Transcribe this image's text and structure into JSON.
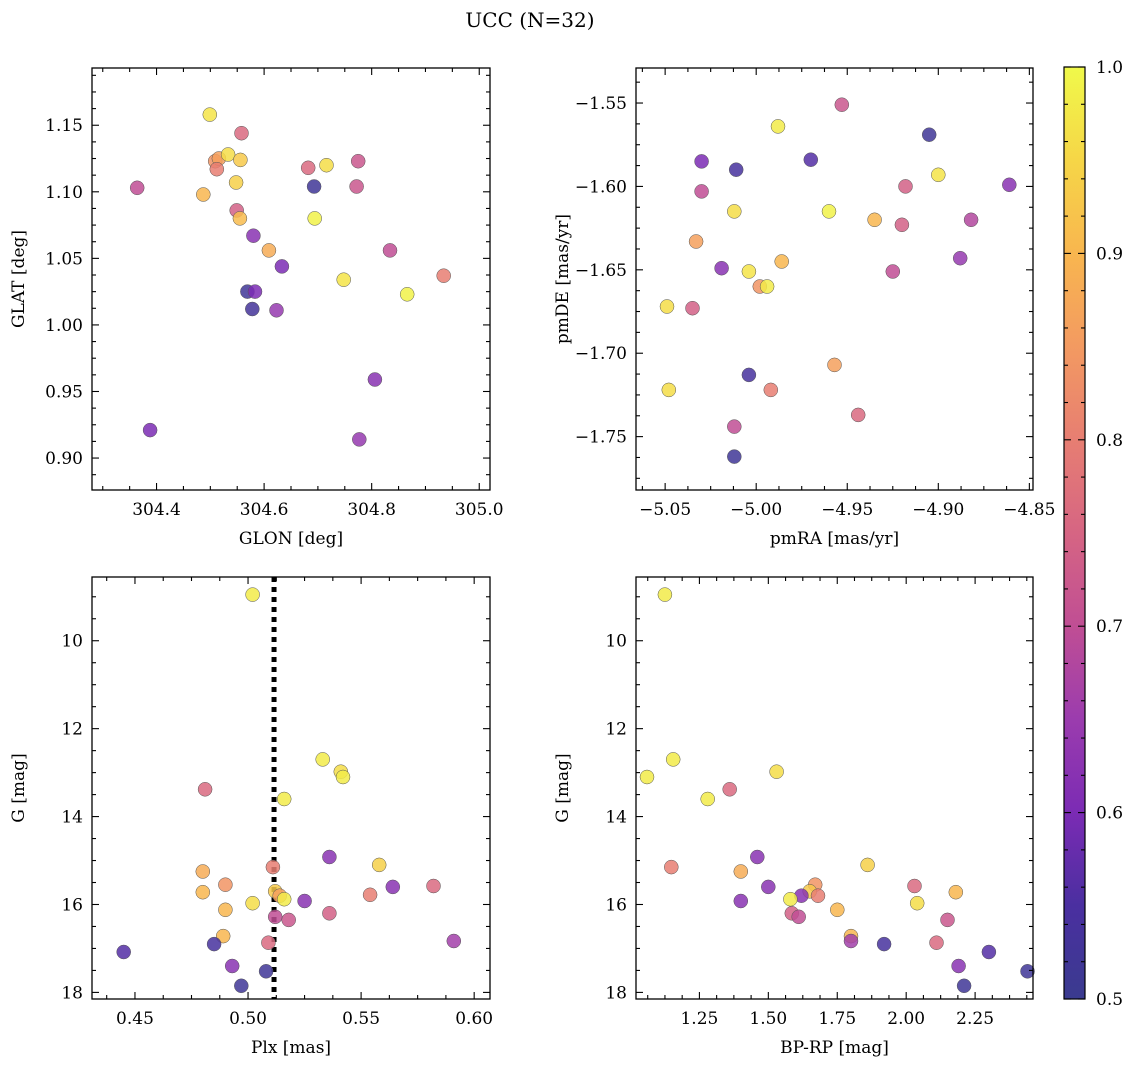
{
  "figure": {
    "title": "UCC (N=32)"
  },
  "chart_data": [
    {
      "type": "scatter",
      "xlabel": "GLON [deg]",
      "ylabel": "GLAT [deg]",
      "xlim": [
        304.28,
        305.02
      ],
      "ylim": [
        0.876,
        1.193
      ],
      "y_inverted": false,
      "xticks": [
        304.4,
        304.6,
        304.8,
        305.0
      ],
      "xtick_labels": [
        "304.4",
        "304.6",
        "304.8",
        "305.0"
      ],
      "yticks": [
        0.9,
        0.95,
        1.0,
        1.05,
        1.1,
        1.15
      ],
      "ytick_labels": [
        "0.90",
        "0.95",
        "1.00",
        "1.05",
        "1.10",
        "1.15"
      ],
      "grid": false,
      "points": [
        {
          "x": 304.499,
          "y": 1.158,
          "c": 0.97
        },
        {
          "x": 304.558,
          "y": 1.144,
          "c": 0.76
        },
        {
          "x": 304.364,
          "y": 1.103,
          "c": 0.7
        },
        {
          "x": 304.388,
          "y": 0.921,
          "c": 0.6
        },
        {
          "x": 304.487,
          "y": 1.098,
          "c": 0.9
        },
        {
          "x": 304.509,
          "y": 1.123,
          "c": 0.84
        },
        {
          "x": 304.516,
          "y": 1.125,
          "c": 0.86
        },
        {
          "x": 304.512,
          "y": 1.117,
          "c": 0.8
        },
        {
          "x": 304.533,
          "y": 1.128,
          "c": 0.96
        },
        {
          "x": 304.556,
          "y": 1.124,
          "c": 0.93
        },
        {
          "x": 304.548,
          "y": 1.107,
          "c": 0.94
        },
        {
          "x": 304.549,
          "y": 1.086,
          "c": 0.74
        },
        {
          "x": 304.555,
          "y": 1.08,
          "c": 0.91
        },
        {
          "x": 304.58,
          "y": 1.067,
          "c": 0.62
        },
        {
          "x": 304.609,
          "y": 1.056,
          "c": 0.88
        },
        {
          "x": 304.633,
          "y": 1.044,
          "c": 0.6
        },
        {
          "x": 304.569,
          "y": 1.025,
          "c": 0.52
        },
        {
          "x": 304.583,
          "y": 1.025,
          "c": 0.6
        },
        {
          "x": 304.578,
          "y": 1.012,
          "c": 0.53
        },
        {
          "x": 304.623,
          "y": 1.011,
          "c": 0.64
        },
        {
          "x": 304.682,
          "y": 1.118,
          "c": 0.76
        },
        {
          "x": 304.693,
          "y": 1.104,
          "c": 0.52
        },
        {
          "x": 304.716,
          "y": 1.12,
          "c": 0.96
        },
        {
          "x": 304.694,
          "y": 1.08,
          "c": 0.99
        },
        {
          "x": 304.775,
          "y": 1.123,
          "c": 0.72
        },
        {
          "x": 304.772,
          "y": 1.104,
          "c": 0.72
        },
        {
          "x": 304.748,
          "y": 1.034,
          "c": 0.97
        },
        {
          "x": 304.834,
          "y": 1.056,
          "c": 0.7
        },
        {
          "x": 304.866,
          "y": 1.023,
          "c": 0.99
        },
        {
          "x": 304.934,
          "y": 1.037,
          "c": 0.8
        },
        {
          "x": 304.806,
          "y": 0.959,
          "c": 0.62
        },
        {
          "x": 304.777,
          "y": 0.914,
          "c": 0.64
        }
      ]
    },
    {
      "type": "scatter",
      "xlabel": "pmRA [mas/yr]",
      "ylabel": "pmDE [mas/yr]",
      "xlim": [
        -5.066,
        -4.848
      ],
      "ylim": [
        -1.782,
        -1.529
      ],
      "y_inverted": false,
      "xticks": [
        -5.05,
        -5.0,
        -4.95,
        -4.9,
        -4.85
      ],
      "xtick_labels": [
        "−5.05",
        "−5.00",
        "−4.95",
        "−4.90",
        "−4.85"
      ],
      "yticks": [
        -1.75,
        -1.7,
        -1.65,
        -1.6,
        -1.55
      ],
      "ytick_labels": [
        "−1.75",
        "−1.70",
        "−1.65",
        "−1.60",
        "−1.55"
      ],
      "grid": false,
      "points": [
        {
          "x": -4.953,
          "y": -1.551,
          "c": 0.72
        },
        {
          "x": -4.988,
          "y": -1.564,
          "c": 0.98
        },
        {
          "x": -4.905,
          "y": -1.569,
          "c": 0.52
        },
        {
          "x": -5.03,
          "y": -1.585,
          "c": 0.6
        },
        {
          "x": -5.011,
          "y": -1.59,
          "c": 0.54
        },
        {
          "x": -4.97,
          "y": -1.584,
          "c": 0.56
        },
        {
          "x": -4.9,
          "y": -1.593,
          "c": 0.97
        },
        {
          "x": -5.03,
          "y": -1.603,
          "c": 0.7
        },
        {
          "x": -4.918,
          "y": -1.6,
          "c": 0.74
        },
        {
          "x": -4.861,
          "y": -1.599,
          "c": 0.62
        },
        {
          "x": -5.012,
          "y": -1.615,
          "c": 0.96
        },
        {
          "x": -4.96,
          "y": -1.615,
          "c": 0.99
        },
        {
          "x": -4.935,
          "y": -1.62,
          "c": 0.9
        },
        {
          "x": -4.92,
          "y": -1.623,
          "c": 0.74
        },
        {
          "x": -4.882,
          "y": -1.62,
          "c": 0.68
        },
        {
          "x": -5.033,
          "y": -1.633,
          "c": 0.86
        },
        {
          "x": -5.019,
          "y": -1.649,
          "c": 0.62
        },
        {
          "x": -5.004,
          "y": -1.651,
          "c": 0.97
        },
        {
          "x": -4.986,
          "y": -1.645,
          "c": 0.9
        },
        {
          "x": -4.925,
          "y": -1.651,
          "c": 0.7
        },
        {
          "x": -4.888,
          "y": -1.643,
          "c": 0.64
        },
        {
          "x": -4.998,
          "y": -1.66,
          "c": 0.84
        },
        {
          "x": -4.994,
          "y": -1.66,
          "c": 0.98
        },
        {
          "x": -5.049,
          "y": -1.672,
          "c": 0.96
        },
        {
          "x": -5.035,
          "y": -1.673,
          "c": 0.74
        },
        {
          "x": -5.048,
          "y": -1.722,
          "c": 0.96
        },
        {
          "x": -5.004,
          "y": -1.713,
          "c": 0.54
        },
        {
          "x": -4.992,
          "y": -1.722,
          "c": 0.8
        },
        {
          "x": -4.957,
          "y": -1.707,
          "c": 0.86
        },
        {
          "x": -4.944,
          "y": -1.737,
          "c": 0.76
        },
        {
          "x": -5.012,
          "y": -1.744,
          "c": 0.7
        },
        {
          "x": -5.012,
          "y": -1.762,
          "c": 0.52
        }
      ]
    },
    {
      "type": "scatter",
      "xlabel": "Plx [mas]",
      "ylabel": "G [mag]",
      "xlim": [
        0.431,
        0.607
      ],
      "ylim": [
        8.55,
        18.15
      ],
      "y_inverted": true,
      "xticks": [
        0.45,
        0.5,
        0.55,
        0.6
      ],
      "xtick_labels": [
        "0.45",
        "0.50",
        "0.55",
        "0.60"
      ],
      "yticks": [
        10,
        12,
        14,
        16,
        18
      ],
      "ytick_labels": [
        "10",
        "12",
        "14",
        "16",
        "18"
      ],
      "grid": false,
      "reference_line": {
        "orientation": "vertical",
        "x": 0.5115,
        "style": "dotted",
        "color": "#000000"
      },
      "points": [
        {
          "x": 0.502,
          "y": 8.95,
          "c": 0.98
        },
        {
          "x": 0.533,
          "y": 12.7,
          "c": 0.98
        },
        {
          "x": 0.541,
          "y": 12.98,
          "c": 0.96
        },
        {
          "x": 0.542,
          "y": 13.1,
          "c": 0.98
        },
        {
          "x": 0.481,
          "y": 13.38,
          "c": 0.76
        },
        {
          "x": 0.516,
          "y": 13.6,
          "c": 0.98
        },
        {
          "x": 0.536,
          "y": 14.92,
          "c": 0.62
        },
        {
          "x": 0.558,
          "y": 15.1,
          "c": 0.94
        },
        {
          "x": 0.511,
          "y": 15.15,
          "c": 0.8
        },
        {
          "x": 0.48,
          "y": 15.25,
          "c": 0.88
        },
        {
          "x": 0.49,
          "y": 15.55,
          "c": 0.84
        },
        {
          "x": 0.564,
          "y": 15.6,
          "c": 0.62
        },
        {
          "x": 0.582,
          "y": 15.58,
          "c": 0.76
        },
        {
          "x": 0.48,
          "y": 15.72,
          "c": 0.9
        },
        {
          "x": 0.512,
          "y": 15.7,
          "c": 0.93
        },
        {
          "x": 0.514,
          "y": 15.8,
          "c": 0.86
        },
        {
          "x": 0.516,
          "y": 15.88,
          "c": 0.98
        },
        {
          "x": 0.554,
          "y": 15.78,
          "c": 0.8
        },
        {
          "x": 0.502,
          "y": 15.97,
          "c": 0.96
        },
        {
          "x": 0.525,
          "y": 15.92,
          "c": 0.62
        },
        {
          "x": 0.49,
          "y": 16.12,
          "c": 0.9
        },
        {
          "x": 0.536,
          "y": 16.2,
          "c": 0.74
        },
        {
          "x": 0.512,
          "y": 16.28,
          "c": 0.7
        },
        {
          "x": 0.518,
          "y": 16.35,
          "c": 0.72
        },
        {
          "x": 0.489,
          "y": 16.72,
          "c": 0.9
        },
        {
          "x": 0.591,
          "y": 16.83,
          "c": 0.66
        },
        {
          "x": 0.509,
          "y": 16.87,
          "c": 0.76
        },
        {
          "x": 0.485,
          "y": 16.9,
          "c": 0.54
        },
        {
          "x": 0.445,
          "y": 17.08,
          "c": 0.56
        },
        {
          "x": 0.493,
          "y": 17.4,
          "c": 0.62
        },
        {
          "x": 0.508,
          "y": 17.52,
          "c": 0.52
        },
        {
          "x": 0.497,
          "y": 17.85,
          "c": 0.52
        }
      ]
    },
    {
      "type": "scatter",
      "xlabel": "BP-RP [mag]",
      "ylabel": "G [mag]",
      "xlim": [
        1.02,
        2.46
      ],
      "ylim": [
        8.55,
        18.15
      ],
      "y_inverted": true,
      "xticks": [
        1.25,
        1.5,
        1.75,
        2.0,
        2.25
      ],
      "xtick_labels": [
        "1.25",
        "1.50",
        "1.75",
        "2.00",
        "2.25"
      ],
      "yticks": [
        10,
        12,
        14,
        16,
        18
      ],
      "ytick_labels": [
        "10",
        "12",
        "14",
        "16",
        "18"
      ],
      "grid": false,
      "points": [
        {
          "x": 1.125,
          "y": 8.95,
          "c": 0.98
        },
        {
          "x": 1.155,
          "y": 12.7,
          "c": 0.98
        },
        {
          "x": 1.06,
          "y": 13.1,
          "c": 0.98
        },
        {
          "x": 1.53,
          "y": 12.98,
          "c": 0.96
        },
        {
          "x": 1.36,
          "y": 13.38,
          "c": 0.76
        },
        {
          "x": 1.28,
          "y": 13.6,
          "c": 0.98
        },
        {
          "x": 1.148,
          "y": 15.15,
          "c": 0.8
        },
        {
          "x": 1.46,
          "y": 14.92,
          "c": 0.62
        },
        {
          "x": 1.4,
          "y": 15.25,
          "c": 0.88
        },
        {
          "x": 1.86,
          "y": 15.1,
          "c": 0.94
        },
        {
          "x": 1.5,
          "y": 15.6,
          "c": 0.62
        },
        {
          "x": 1.67,
          "y": 15.55,
          "c": 0.84
        },
        {
          "x": 2.03,
          "y": 15.58,
          "c": 0.76
        },
        {
          "x": 2.18,
          "y": 15.72,
          "c": 0.9
        },
        {
          "x": 1.65,
          "y": 15.7,
          "c": 0.93
        },
        {
          "x": 1.62,
          "y": 15.8,
          "c": 0.62
        },
        {
          "x": 1.68,
          "y": 15.8,
          "c": 0.8
        },
        {
          "x": 1.58,
          "y": 15.88,
          "c": 0.98
        },
        {
          "x": 1.4,
          "y": 15.92,
          "c": 0.62
        },
        {
          "x": 2.04,
          "y": 15.97,
          "c": 0.96
        },
        {
          "x": 1.75,
          "y": 16.12,
          "c": 0.9
        },
        {
          "x": 1.585,
          "y": 16.2,
          "c": 0.74
        },
        {
          "x": 1.61,
          "y": 16.28,
          "c": 0.7
        },
        {
          "x": 2.15,
          "y": 16.35,
          "c": 0.72
        },
        {
          "x": 1.8,
          "y": 16.72,
          "c": 0.9
        },
        {
          "x": 1.8,
          "y": 16.83,
          "c": 0.66
        },
        {
          "x": 2.11,
          "y": 16.87,
          "c": 0.76
        },
        {
          "x": 1.92,
          "y": 16.9,
          "c": 0.54
        },
        {
          "x": 2.3,
          "y": 17.08,
          "c": 0.56
        },
        {
          "x": 2.19,
          "y": 17.4,
          "c": 0.62
        },
        {
          "x": 2.44,
          "y": 17.52,
          "c": 0.52
        },
        {
          "x": 2.21,
          "y": 17.85,
          "c": 0.52
        }
      ]
    }
  ],
  "colorbar": {
    "colormap": "plasma",
    "range": [
      0.5,
      1.0
    ],
    "ticks": [
      0.5,
      0.6,
      0.7,
      0.8,
      0.9,
      1.0
    ],
    "tick_labels": [
      "0.5",
      "0.6",
      "0.7",
      "0.8",
      "0.9",
      "1.0"
    ],
    "label": ""
  },
  "style": {
    "point_alpha": 0.85,
    "reference_line_color": "#000000"
  }
}
